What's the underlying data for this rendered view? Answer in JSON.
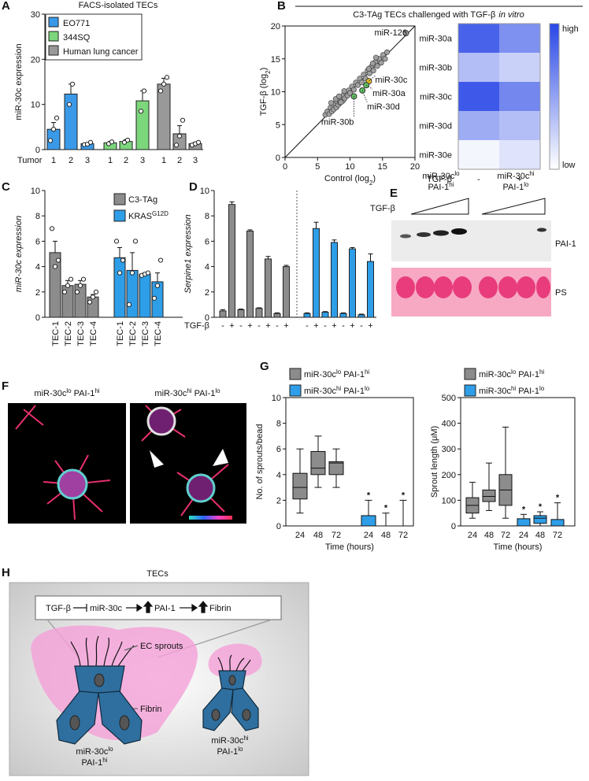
{
  "chart_data": [
    {
      "panel": "A",
      "type": "bar",
      "title": "FACS-isolated TECs",
      "ylabel": "miR-30c expression",
      "xlabel": "Tumor",
      "categories": [
        "1",
        "2",
        "3",
        "1",
        "2",
        "3",
        "1",
        "2",
        "3"
      ],
      "ylim": [
        0,
        30
      ],
      "yticks": [
        0,
        10,
        20,
        30
      ],
      "series": [
        {
          "name": [
            "EO771"
          ],
          "color": "#3a9ae8",
          "values": [
            4.5,
            12.3,
            1.3,
            null,
            null,
            null,
            null,
            null,
            null
          ],
          "errors": [
            1.5,
            2.2,
            0.2,
            null,
            null,
            null,
            null,
            null,
            null
          ],
          "points": [
            [
              2,
              4.5,
              7
            ],
            [
              10,
              14.5
            ],
            [
              1.1,
              1.2,
              1.6
            ],
            null,
            null,
            null,
            null,
            null,
            null
          ]
        },
        {
          "name": [
            "344SQ"
          ],
          "color": "#7cd67c",
          "values": [
            null,
            null,
            null,
            1.5,
            1.8,
            10.8,
            null,
            null,
            null
          ],
          "errors": [
            null,
            null,
            null,
            0.3,
            0.4,
            2.2,
            null,
            null,
            null
          ],
          "points": [
            null,
            null,
            null,
            [
              1.3,
              1.7
            ],
            [
              1.6,
              2.1
            ],
            [
              8.5,
              13
            ],
            null,
            null,
            null
          ]
        },
        {
          "name": [
            "Human lung cancer"
          ],
          "color": "#999999",
          "values": [
            null,
            null,
            null,
            null,
            null,
            null,
            14.5,
            3.5,
            1.3
          ],
          "errors": [
            null,
            null,
            null,
            null,
            null,
            null,
            1.3,
            1.8,
            0.3
          ],
          "points": [
            null,
            null,
            null,
            null,
            null,
            null,
            [
              13,
              14.5,
              16
            ],
            [
              1,
              3,
              6.5
            ],
            [
              1,
              1.3,
              1.6
            ]
          ]
        }
      ]
    },
    {
      "panel": "B",
      "type": "scatter",
      "header": [
        "C3-TAg TECs challenged with TGF-β",
        "in vitro"
      ],
      "xlabel": [
        "Control (log",
        "2",
        ")"
      ],
      "ylabel": [
        "TGF-β (log",
        "2",
        ")"
      ],
      "xlim": [
        0,
        20
      ],
      "ylim": [
        0,
        20
      ],
      "xticks": [
        0,
        5,
        10,
        15,
        20
      ],
      "yticks": [
        0,
        5,
        10,
        15,
        20
      ],
      "color": "#a0a0a0",
      "x": [
        6.2,
        6.5,
        6.8,
        7.0,
        7.2,
        7.4,
        7.5,
        7.7,
        7.9,
        8.0,
        8.2,
        8.4,
        8.5,
        8.7,
        8.9,
        9.0,
        9.2,
        9.4,
        9.6,
        9.8,
        10.0,
        10.3,
        10.6,
        10.9,
        11.2,
        11.5,
        11.8,
        12.1,
        12.4,
        12.7,
        13.0,
        13.3,
        13.6,
        13.9,
        14.2,
        14.5,
        14.8,
        15.1,
        15.4,
        15.7,
        7.1,
        7.8,
        8.3,
        9.1,
        8.6,
        13.5,
        14.0,
        12.9
      ],
      "values": [
        6.5,
        7.0,
        6.6,
        7.6,
        7.0,
        8.0,
        7.3,
        8.2,
        7.6,
        8.5,
        8.0,
        8.8,
        8.3,
        9.0,
        8.6,
        9.5,
        9.0,
        9.8,
        9.4,
        10.2,
        9.8,
        10.8,
        10.3,
        11.4,
        11.0,
        12.0,
        11.4,
        12.6,
        12.0,
        13.2,
        12.8,
        13.8,
        13.2,
        14.5,
        13.9,
        15.0,
        14.4,
        15.6,
        15.0,
        16.0,
        8.3,
        8.9,
        9.3,
        10.1,
        8.4,
        14.3,
        15.2,
        13.5
      ],
      "annotations": [
        {
          "text": "miR-126",
          "x": 18.6,
          "y": 18.9,
          "color": "#a0a0a0"
        },
        {
          "text": "miR-30c",
          "x": 12.9,
          "y": 11.6,
          "color": "#e8c020"
        },
        {
          "text": "miR-30a",
          "x": 12.5,
          "y": 11.0,
          "color": "#60c060"
        },
        {
          "text": "miR-30d",
          "x": 11.9,
          "y": 10.2,
          "color": "#60c060"
        },
        {
          "text": "miR-30b",
          "x": 10.6,
          "y": 9.3,
          "color": "#60c060"
        }
      ]
    },
    {
      "type": "heatmap",
      "rows": [
        "miR-30a",
        "miR-30b",
        "miR-30c",
        "miR-30d",
        "miR-30e"
      ],
      "columns": [
        "-",
        "+"
      ],
      "xlabel": "TGF-β",
      "values": [
        [
          0.85,
          0.6
        ],
        [
          0.35,
          0.25
        ],
        [
          0.9,
          0.65
        ],
        [
          0.45,
          0.35
        ],
        [
          0.05,
          0.15
        ]
      ],
      "scale_labels": [
        "high",
        "low"
      ]
    },
    {
      "panel": "C",
      "type": "bar",
      "ylabel": "miR-30c expression",
      "categories": [
        "TEC-1",
        "TEC-2",
        "TEC-3",
        "TEC-4",
        "TEC-1",
        "TEC-2",
        "TEC-3",
        "TEC-4"
      ],
      "ylim": [
        0,
        10
      ],
      "yticks": [
        0,
        2,
        4,
        6,
        8,
        10
      ],
      "series": [
        {
          "name": [
            "C3-TAg"
          ],
          "color": "#8c8c8c",
          "values": [
            5.1,
            2.5,
            2.6,
            1.6,
            null,
            null,
            null,
            null
          ],
          "errors": [
            0.9,
            0.4,
            0.3,
            0.2,
            null,
            null,
            null,
            null
          ],
          "points": [
            [
              7,
              4,
              4.5
            ],
            [
              2,
              2.5,
              3
            ],
            [
              2,
              2.5,
              3
            ],
            [
              1.2,
              1.6,
              2
            ],
            null,
            null,
            null,
            null
          ]
        },
        {
          "name": [
            "KRAS",
            "G12D"
          ],
          "color": "#2e9ee8",
          "values": [
            null,
            null,
            null,
            null,
            4.7,
            3.7,
            3.4,
            2.8
          ],
          "errors": [
            null,
            null,
            null,
            null,
            0.8,
            1.4,
            0.1,
            0.7
          ],
          "points": [
            null,
            null,
            null,
            null,
            [
              6,
              3.5,
              4.5
            ],
            [
              1,
              3.5,
              6
            ],
            [
              3.3,
              3.4,
              3.5
            ],
            [
              1.5,
              2.5,
              4.5
            ]
          ]
        }
      ]
    },
    {
      "panel": "D",
      "type": "bar",
      "ylabel": "Serpine1 expression",
      "xlabel": "TGF-β",
      "categories": [
        "-",
        "+",
        "-",
        "+",
        "-",
        "+",
        "-",
        "+",
        "-",
        "+",
        "-",
        "+",
        "-",
        "+",
        "-",
        "+"
      ],
      "ylim": [
        0,
        10
      ],
      "yticks": [
        0,
        2,
        4,
        6,
        8,
        10
      ],
      "series": [
        {
          "color": "#8c8c8c",
          "values": [
            0.5,
            8.9,
            0.6,
            6.8,
            0.7,
            4.6,
            0.3,
            4.0,
            null,
            null,
            null,
            null,
            null,
            null,
            null,
            null
          ],
          "errors": [
            0.1,
            0.2,
            0.05,
            0.1,
            0.05,
            0.2,
            0.05,
            0.1,
            null,
            null,
            null,
            null,
            null,
            null,
            null,
            null
          ]
        },
        {
          "color": "#2e9ee8",
          "values": [
            null,
            null,
            null,
            null,
            null,
            null,
            null,
            null,
            0.3,
            7.0,
            0.4,
            5.9,
            0.3,
            5.4,
            0.2,
            4.4
          ],
          "errors": [
            null,
            null,
            null,
            null,
            null,
            null,
            null,
            null,
            0.05,
            0.5,
            0.05,
            0.2,
            0.05,
            0.1,
            0.05,
            0.6
          ]
        }
      ]
    },
    {
      "panel": "G",
      "type": "box",
      "ylabel": "No. of sprouts/bead",
      "xlabel": "Time (hours)",
      "categories": [
        "24",
        "48",
        "72",
        "24",
        "48",
        "72"
      ],
      "ylim": [
        0,
        10
      ],
      "yticks": [
        0,
        2,
        4,
        6,
        8,
        10
      ],
      "series": [
        {
          "name": [
            "miR-30c",
            "lo",
            " PAI-1",
            "hi"
          ],
          "color": "#8c8c8c",
          "values": [
            [
              1,
              2.1,
              3,
              4.1,
              6
            ],
            [
              3,
              4,
              4.5,
              5.8,
              7
            ],
            [
              3,
              4,
              4.9,
              5,
              6
            ],
            null,
            null,
            null
          ]
        },
        {
          "name": [
            "miR-30c",
            "hi",
            " PAI-1",
            "lo"
          ],
          "color": "#2e9ee8",
          "values": [
            null,
            null,
            null,
            [
              0,
              0,
              0,
              0.8,
              2
            ],
            [
              0,
              0,
              0,
              0,
              1
            ],
            [
              0,
              0,
              0,
              0,
              2
            ]
          ]
        }
      ],
      "stars": [
        null,
        null,
        null,
        "*",
        "*",
        "*"
      ]
    },
    {
      "type": "box",
      "ylabel": "Sprout length (μM)",
      "xlabel": "Time (hours)",
      "categories": [
        "24",
        "48",
        "72",
        "24",
        "48",
        "72"
      ],
      "ylim": [
        0,
        500
      ],
      "yticks": [
        0,
        100,
        200,
        300,
        400,
        500
      ],
      "series": [
        {
          "name": [
            "miR-30c",
            "lo",
            " PAI-1",
            "hi"
          ],
          "color": "#8c8c8c",
          "values": [
            [
              30,
              50,
              80,
              110,
              170
            ],
            [
              60,
              95,
              115,
              140,
              245
            ],
            [
              30,
              80,
              140,
              200,
              385
            ],
            null,
            null,
            null
          ]
        },
        {
          "name": [
            "miR-30c",
            "hi",
            " PAI-1",
            "lo"
          ],
          "color": "#2e9ee8",
          "values": [
            null,
            null,
            null,
            [
              0,
              0,
              0,
              28,
              45
            ],
            [
              0,
              10,
              30,
              40,
              55
            ],
            [
              0,
              0,
              0,
              25,
              90
            ]
          ]
        }
      ],
      "stars": [
        null,
        null,
        null,
        "*",
        "*",
        "*"
      ]
    }
  ],
  "blot": {
    "panel": "E",
    "groups": [
      {
        "line1": [
          "miR-30c",
          "lo"
        ],
        "line2": [
          "PAI-1",
          "hi"
        ]
      },
      {
        "line1": [
          "miR-30c",
          "hi"
        ],
        "line2": [
          "PAI-1",
          "lo"
        ]
      }
    ],
    "treatment": "TGF-β",
    "rows": [
      "PAI-1",
      "PS"
    ]
  },
  "micrographs": {
    "panel": "F",
    "titles": [
      [
        "miR-30c",
        "lo",
        " PAI-1",
        "hi"
      ],
      [
        "miR-30c",
        "hi",
        " PAI-1",
        "lo"
      ]
    ]
  },
  "diagram": {
    "panel": "H",
    "title": "TECs",
    "pathway": [
      "TGF-β",
      "miR-30c",
      "PAI-1",
      "Fibrin"
    ],
    "sprouts": "EC sprouts",
    "fibrin": "Fibrin",
    "cells": [
      {
        "line1": [
          "miR-30c",
          "lo"
        ],
        "line2": [
          "PAI-1",
          "hi"
        ]
      },
      {
        "line1": [
          "miR-30c",
          "hi"
        ],
        "line2": [
          "PAI-1",
          "lo"
        ]
      }
    ]
  }
}
